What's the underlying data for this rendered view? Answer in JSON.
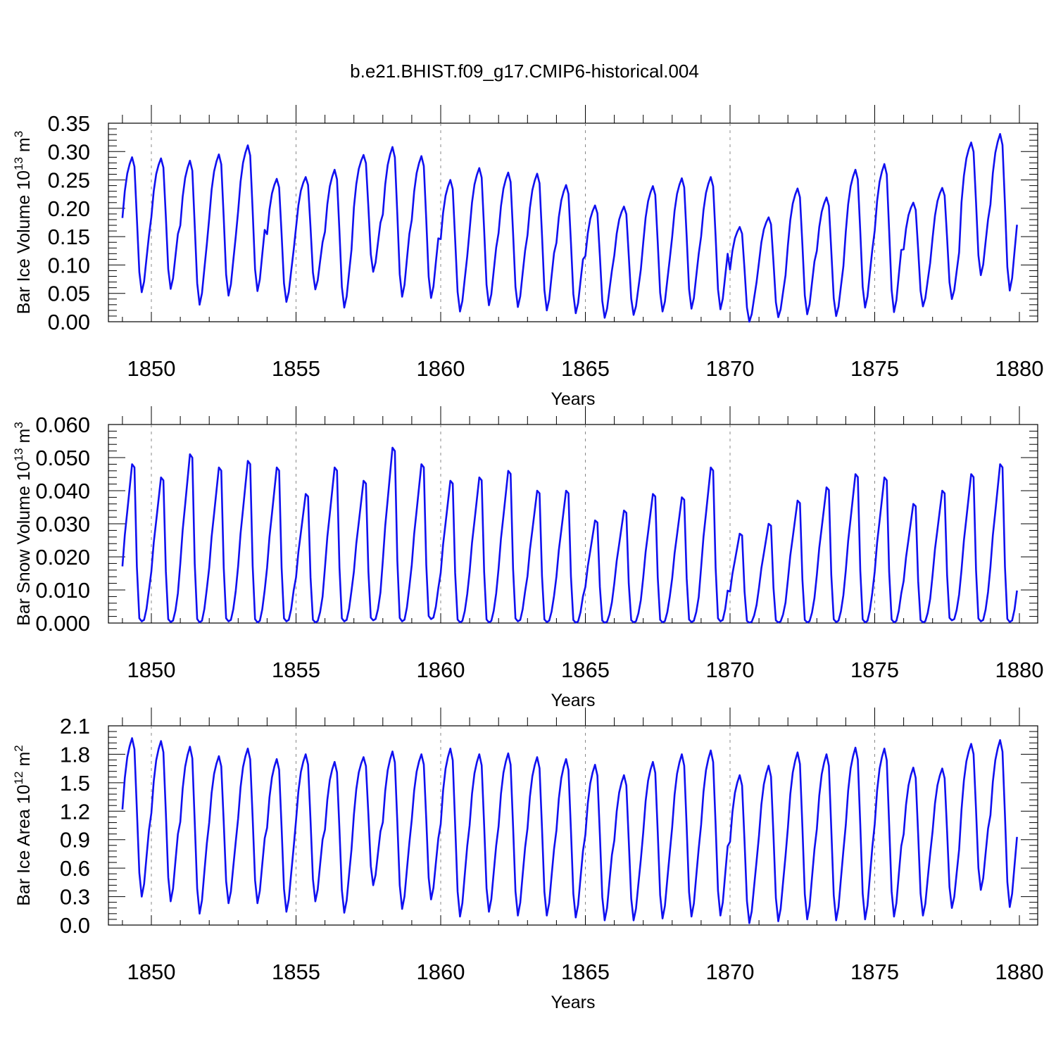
{
  "title": "b.e21.BHIST.f09_g17.CMIP6-historical.004",
  "chart_data": [
    {
      "type": "line",
      "ylabel": "Bar Ice Volume 10",
      "ylabel_sup": "13",
      "ylabel_unit": " m",
      "ylabel_unit_sup": "3",
      "xlabel": "Years",
      "xlim": [
        1849.0,
        1880.0
      ],
      "ylim": [
        0.0,
        0.35
      ],
      "xticks": [
        1850,
        1855,
        1860,
        1865,
        1870,
        1875,
        1880
      ],
      "xtick_labels": [
        "1850",
        "1855",
        "1860",
        "1865",
        "1870",
        "1875",
        "1880"
      ],
      "yticks": [
        0.0,
        0.05,
        0.1,
        0.15,
        0.2,
        0.25,
        0.3,
        0.35
      ],
      "ytick_labels": [
        "0.00",
        "0.05",
        "0.10",
        "0.15",
        "0.20",
        "0.25",
        "0.30",
        "0.35"
      ],
      "series_color": "#1010f0",
      "series": [
        {
          "year_start": 1849,
          "peaks": [
            0.29,
            0.288,
            0.284,
            0.295,
            0.311,
            0.252,
            0.255,
            0.268,
            0.294,
            0.308,
            0.292,
            0.25,
            0.271,
            0.263,
            0.261,
            0.241,
            0.205,
            0.203,
            0.239,
            0.253,
            0.255,
            0.167,
            0.184,
            0.235,
            0.219,
            0.268,
            0.278,
            0.21,
            0.236,
            0.316,
            0.331
          ],
          "troughs": [
            0.052,
            0.058,
            0.03,
            0.046,
            0.054,
            0.035,
            0.057,
            0.025,
            0.088,
            0.044,
            0.042,
            0.018,
            0.029,
            0.026,
            0.02,
            0.015,
            0.007,
            0.012,
            0.018,
            0.023,
            0.022,
            0.0,
            0.008,
            0.013,
            0.01,
            0.025,
            0.017,
            0.027,
            0.04,
            0.082,
            0.055
          ]
        }
      ]
    },
    {
      "type": "line",
      "ylabel": "Bar Snow Volume 10",
      "ylabel_sup": "13",
      "ylabel_unit": " m",
      "ylabel_unit_sup": "3",
      "xlabel": "Years",
      "xlim": [
        1849.0,
        1880.0
      ],
      "ylim": [
        0.0,
        0.06
      ],
      "xticks": [
        1850,
        1855,
        1860,
        1865,
        1870,
        1875,
        1880
      ],
      "xtick_labels": [
        "1850",
        "1855",
        "1860",
        "1865",
        "1870",
        "1875",
        "1880"
      ],
      "yticks": [
        0.0,
        0.01,
        0.02,
        0.03,
        0.04,
        0.05,
        0.06
      ],
      "ytick_labels": [
        "0.000",
        "0.010",
        "0.020",
        "0.030",
        "0.040",
        "0.050",
        "0.060"
      ],
      "series_color": "#1010f0",
      "series": [
        {
          "year_start": 1849,
          "peaks": [
            0.048,
            0.044,
            0.051,
            0.047,
            0.049,
            0.047,
            0.039,
            0.047,
            0.043,
            0.053,
            0.048,
            0.043,
            0.044,
            0.046,
            0.04,
            0.04,
            0.031,
            0.034,
            0.039,
            0.038,
            0.047,
            0.027,
            0.03,
            0.037,
            0.041,
            0.045,
            0.044,
            0.036,
            0.04,
            0.045,
            0.048
          ],
          "troughs": [
            0.0005,
            0.0003,
            0.0002,
            0.0005,
            0.0002,
            0.0005,
            0.0002,
            0.0005,
            0.0008,
            0.0005,
            0.0012,
            0.0002,
            0.0002,
            0.0005,
            0.0003,
            0.0001,
            0.0001,
            0.0002,
            0.0002,
            0.0003,
            0.0005,
            0.0001,
            0.0002,
            0.0002,
            0.0003,
            0.0002,
            0.0002,
            0.0002,
            0.0008,
            0.0005,
            0.0003
          ]
        }
      ]
    },
    {
      "type": "line",
      "ylabel": "Bar Ice Area 10",
      "ylabel_sup": "12",
      "ylabel_unit": " m",
      "ylabel_unit_sup": "2",
      "xlabel": "Years",
      "xlim": [
        1849.0,
        1880.0
      ],
      "ylim": [
        0.0,
        2.1
      ],
      "xticks": [
        1850,
        1855,
        1860,
        1865,
        1870,
        1875,
        1880
      ],
      "xtick_labels": [
        "1850",
        "1855",
        "1860",
        "1865",
        "1870",
        "1875",
        "1880"
      ],
      "yticks": [
        0.0,
        0.3,
        0.6,
        0.9,
        1.2,
        1.5,
        1.8,
        2.1
      ],
      "ytick_labels": [
        "0.0",
        "0.3",
        "0.6",
        "0.9",
        "1.2",
        "1.5",
        "1.8",
        "2.1"
      ],
      "series_color": "#1010f0",
      "series": [
        {
          "year_start": 1849,
          "peaks": [
            1.97,
            1.94,
            1.88,
            1.78,
            1.86,
            1.75,
            1.8,
            1.72,
            1.77,
            1.83,
            1.8,
            1.86,
            1.8,
            1.81,
            1.77,
            1.75,
            1.69,
            1.58,
            1.72,
            1.8,
            1.84,
            1.58,
            1.68,
            1.82,
            1.8,
            1.87,
            1.86,
            1.66,
            1.65,
            1.91,
            1.95
          ],
          "troughs": [
            0.3,
            0.25,
            0.12,
            0.23,
            0.23,
            0.14,
            0.25,
            0.13,
            0.42,
            0.17,
            0.27,
            0.09,
            0.14,
            0.1,
            0.1,
            0.08,
            0.05,
            0.05,
            0.07,
            0.09,
            0.1,
            0.02,
            0.04,
            0.06,
            0.05,
            0.06,
            0.09,
            0.1,
            0.18,
            0.37,
            0.19
          ]
        }
      ]
    }
  ]
}
